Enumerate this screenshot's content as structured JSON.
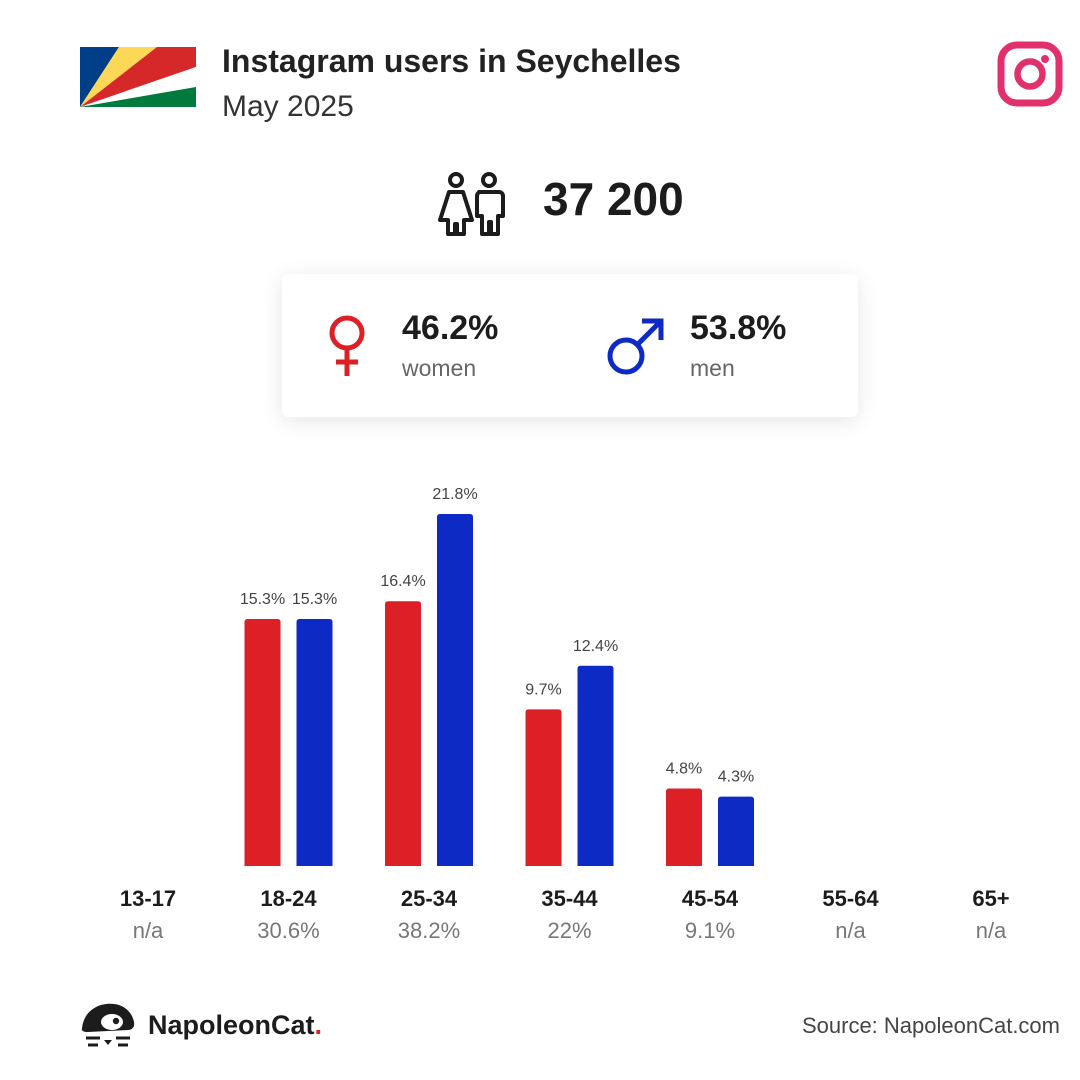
{
  "header": {
    "title": "Instagram users in Seychelles",
    "subtitle": "May 2025",
    "flag_icon": "seychelles-flag-icon",
    "platform_icon": "instagram-icon"
  },
  "summary": {
    "total_users": "37 200",
    "people_icon": "people-icon"
  },
  "gender": {
    "women_pct": "46.2%",
    "women_label": "women",
    "men_pct": "53.8%",
    "men_label": "men",
    "female_icon": "female-symbol-icon",
    "male_icon": "male-symbol-icon"
  },
  "colors": {
    "women": "#dd1f26",
    "men": "#0d2ac4",
    "instagram": "#e1306c"
  },
  "chart_data": {
    "type": "bar",
    "categories": [
      "13-17",
      "18-24",
      "25-34",
      "35-44",
      "45-54",
      "55-64",
      "65+"
    ],
    "category_totals": [
      "n/a",
      "30.6%",
      "38.2%",
      "22%",
      "9.1%",
      "n/a",
      "n/a"
    ],
    "series": [
      {
        "values": [
          null,
          15.3,
          16.4,
          9.7,
          4.8,
          null,
          null
        ],
        "labels": [
          "",
          "15.3%",
          "16.4%",
          "9.7%",
          "4.8%",
          "",
          ""
        ]
      },
      {
        "values": [
          null,
          15.3,
          21.8,
          12.4,
          4.3,
          null,
          null
        ],
        "labels": [
          "",
          "15.3%",
          "21.8%",
          "12.4%",
          "4.3%",
          "",
          ""
        ]
      }
    ],
    "ylim": [
      0,
      21.8
    ],
    "grid": false,
    "legend": "none"
  },
  "footer": {
    "brand": "NapoleonCat",
    "brand_dot": ".",
    "source": "Source: NapoleonCat.com",
    "logo_icon": "napoleoncat-logo-icon"
  }
}
